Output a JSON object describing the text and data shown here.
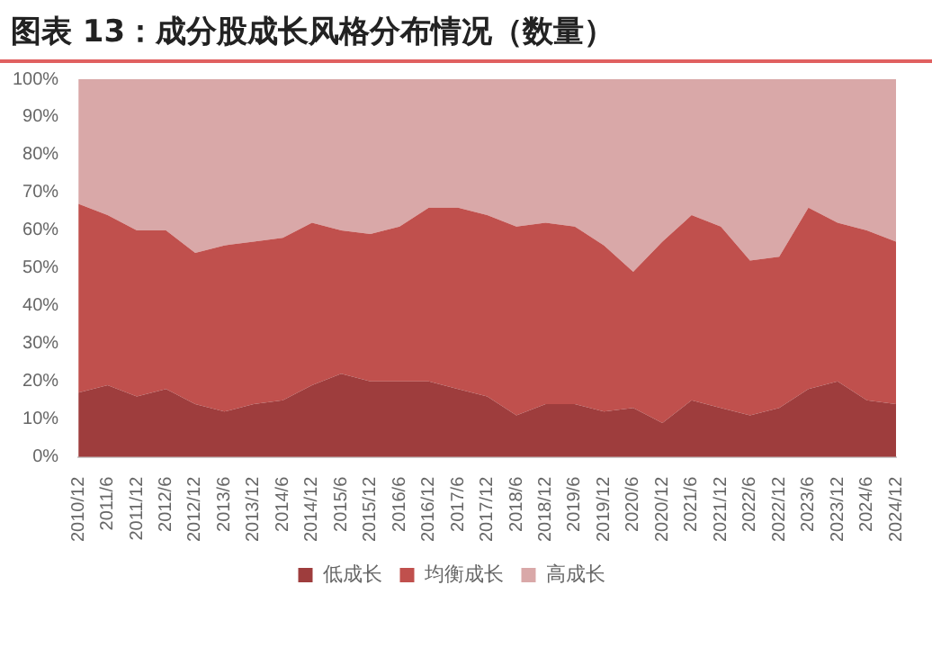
{
  "chart_data": {
    "type": "area",
    "title": "图表 13：成分股成长风格分布情况（数量）",
    "stacked": true,
    "categories": [
      "2010/12",
      "2011/6",
      "2011/12",
      "2012/6",
      "2012/12",
      "2013/6",
      "2013/12",
      "2014/6",
      "2014/12",
      "2015/6",
      "2015/12",
      "2016/6",
      "2016/12",
      "2017/6",
      "2017/12",
      "2018/6",
      "2018/12",
      "2019/6",
      "2019/12",
      "2020/6",
      "2020/12",
      "2021/6",
      "2021/12",
      "2022/6",
      "2022/12",
      "2023/6",
      "2023/12",
      "2024/6",
      "2024/12"
    ],
    "series": [
      {
        "name": "低成长",
        "color": "#9e3d3d",
        "values": [
          17,
          19,
          16,
          18,
          14,
          12,
          14,
          15,
          19,
          22,
          20,
          20,
          20,
          18,
          16,
          11,
          14,
          14,
          12,
          13,
          9,
          15,
          13,
          11,
          13,
          18,
          20,
          15,
          14
        ]
      },
      {
        "name": "均衡成长",
        "color": "#c0504d",
        "values": [
          50,
          45,
          44,
          42,
          40,
          44,
          43,
          43,
          43,
          38,
          39,
          41,
          46,
          48,
          48,
          50,
          48,
          47,
          44,
          36,
          48,
          49,
          48,
          41,
          40,
          48,
          42,
          45,
          43
        ]
      },
      {
        "name": "高成长",
        "color": "#d9a8a8",
        "values": [
          33,
          36,
          40,
          40,
          46,
          44,
          43,
          42,
          38,
          40,
          41,
          39,
          34,
          34,
          36,
          39,
          38,
          39,
          44,
          51,
          43,
          36,
          39,
          48,
          47,
          34,
          38,
          40,
          43
        ]
      }
    ],
    "ylim": [
      0,
      100
    ],
    "yticks": [
      {
        "value": 0,
        "label": "0%"
      },
      {
        "value": 10,
        "label": "10%"
      },
      {
        "value": 20,
        "label": "20%"
      },
      {
        "value": 30,
        "label": "30%"
      },
      {
        "value": 40,
        "label": "40%"
      },
      {
        "value": 50,
        "label": "50%"
      },
      {
        "value": 60,
        "label": "60%"
      },
      {
        "value": 70,
        "label": "70%"
      },
      {
        "value": 80,
        "label": "80%"
      },
      {
        "value": 90,
        "label": "90%"
      },
      {
        "value": 100,
        "label": "100%"
      }
    ],
    "grid": false,
    "legend": "bottom"
  }
}
